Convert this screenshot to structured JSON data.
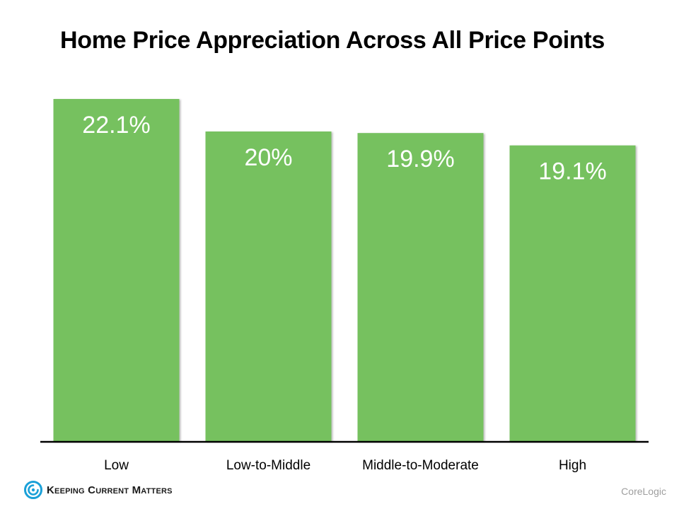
{
  "colors": {
    "bar": "#76c15e",
    "bar_label": "#ffffff",
    "axis": "#000000",
    "logo_accent": "#1aa0d8",
    "source_text": "#9e9e9e"
  },
  "brand": {
    "logo_text": "Keeping Current Matters",
    "logo_icon": "kcm-swirl-icon"
  },
  "source": "CoreLogic",
  "chart_data": {
    "type": "bar",
    "title": "Home Price Appreciation Across All Price Points",
    "categories": [
      "Low",
      "Low-to-Middle",
      "Middle-to-Moderate",
      "High"
    ],
    "values": [
      22.1,
      20.0,
      19.9,
      19.1
    ],
    "data_labels": [
      "22.1%",
      "20%",
      "19.9%",
      "19.1%"
    ],
    "xlabel": "",
    "ylabel": "",
    "ylim": [
      0,
      22.1
    ],
    "grid": false,
    "legend": "none"
  }
}
